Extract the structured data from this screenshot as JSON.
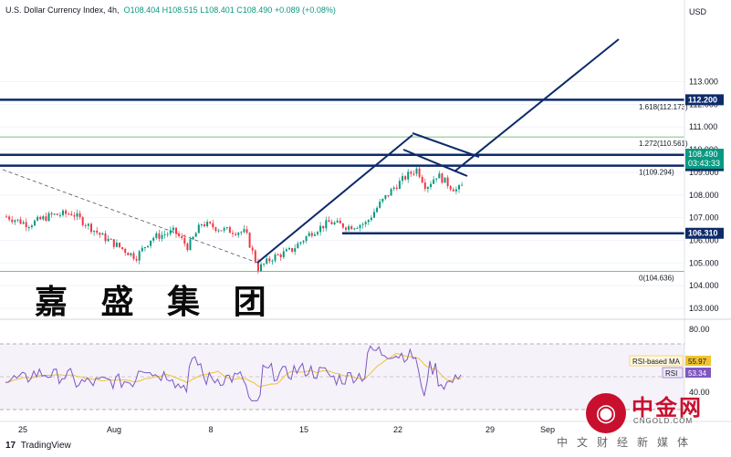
{
  "header": {
    "symbol": "U.S. Dollar Currency Index, 4h,",
    "o": "O108.404",
    "h": "H108.515",
    "l": "L108.401",
    "c": "C108.490",
    "change": "+0.089 (+0.08%)"
  },
  "watermark": "嘉 盛 集 团",
  "brand": {
    "icon_char": "◉",
    "name": "中金网",
    "url": "CNGOLD.COM",
    "slogan": "中文财经新媒体"
  },
  "footer": {
    "logo": "17",
    "label": "TradingView"
  },
  "chart_data": {
    "type": "candlestick",
    "currency_label": "USD",
    "y_range": [
      102.5,
      113.6
    ],
    "y_ticks": [
      103.0,
      104.0,
      105.0,
      106.0,
      107.0,
      108.0,
      109.0,
      110.0,
      111.0,
      112.0,
      113.0
    ],
    "x_ticks": [
      "25",
      "Aug",
      "8",
      "15",
      "22",
      "29",
      "Sep"
    ],
    "h_levels": [
      {
        "value": 112.2,
        "label": "112.200",
        "color": "#0d2a6b"
      },
      {
        "value": 109.77,
        "label": "109.770",
        "color": "#0d2a6b"
      },
      {
        "value": 109.294,
        "label": "109.294",
        "color": "#0d2a6b"
      },
      {
        "value": 106.31,
        "label": "106.310",
        "color": "#0d2a6b"
      }
    ],
    "fib_levels": [
      {
        "value": 112.173,
        "label": "1.618(112.173)"
      },
      {
        "value": 110.561,
        "label": "1.272(110.561)"
      },
      {
        "value": 109.294,
        "label": "1(109.294)"
      },
      {
        "value": 104.636,
        "label": "0(104.636)"
      }
    ],
    "price_tag": {
      "value": 108.49,
      "label": "108.490",
      "timer": "03:43:33"
    },
    "rsi": {
      "ticks": [
        "80.00",
        "40.00"
      ],
      "ma_label": "RSI-based MA",
      "ma_value": "55.97",
      "rsi_label": "RSI",
      "rsi_value": "53.34"
    },
    "colors": {
      "up": "#089981",
      "down": "#f23645",
      "level": "#0d2a6b",
      "rsi": "#7e57c2",
      "rsi_ma": "#f0c330",
      "fib": "#4caf50"
    }
  }
}
